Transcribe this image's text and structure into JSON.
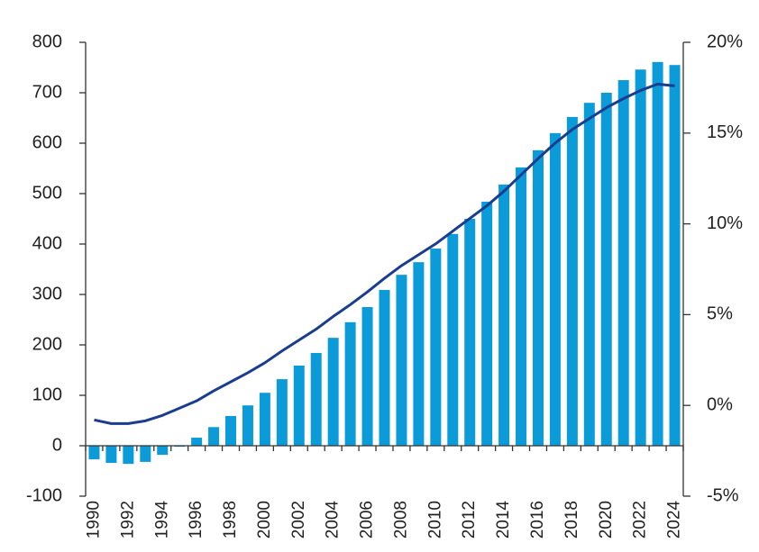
{
  "chart_data": {
    "type": "bar_line",
    "categories": [
      "1990",
      null,
      "1992",
      null,
      "1994",
      null,
      "1996",
      null,
      "1998",
      null,
      "2000",
      null,
      "2002",
      null,
      "2004",
      null,
      "2006",
      null,
      "2008",
      null,
      "2010",
      null,
      "2012",
      null,
      "2014",
      null,
      "2016",
      null,
      "2018",
      null,
      "2020",
      null,
      "2022",
      null,
      "2024"
    ],
    "series": [
      {
        "type": "bar",
        "color": "#0b9bd9",
        "values": [
          -27,
          -34,
          -36,
          -32,
          -18,
          -2,
          16,
          37,
          59,
          80,
          105,
          132,
          159,
          184,
          214,
          245,
          275,
          309,
          339,
          364,
          391,
          420,
          450,
          484,
          518,
          552,
          586,
          620,
          652,
          680,
          700,
          725,
          746,
          761,
          755
        ]
      },
      {
        "type": "line",
        "axis": "y2",
        "color": "#1a3d8f",
        "values": [
          -0.8,
          -1.0,
          -1.0,
          -0.85,
          -0.55,
          -0.15,
          0.25,
          0.8,
          1.3,
          1.8,
          2.35,
          3.0,
          3.6,
          4.2,
          4.9,
          5.55,
          6.25,
          7.0,
          7.7,
          8.3,
          8.9,
          9.6,
          10.3,
          11.0,
          11.8,
          12.7,
          13.6,
          14.45,
          15.2,
          15.8,
          16.4,
          16.9,
          17.35,
          17.7,
          17.6
        ]
      }
    ],
    "ylim": [
      -100,
      800
    ],
    "yticks": [
      -100,
      0,
      100,
      200,
      300,
      400,
      500,
      600,
      700,
      800
    ],
    "y2lim": [
      -5,
      20
    ],
    "y2ticks": [
      {
        "value": -5,
        "label": "-5%"
      },
      {
        "value": 0,
        "label": "0%"
      },
      {
        "value": 5,
        "label": "5%"
      },
      {
        "value": 10,
        "label": "10%"
      },
      {
        "value": 15,
        "label": "15%"
      },
      {
        "value": 20,
        "label": "20%"
      }
    ]
  }
}
